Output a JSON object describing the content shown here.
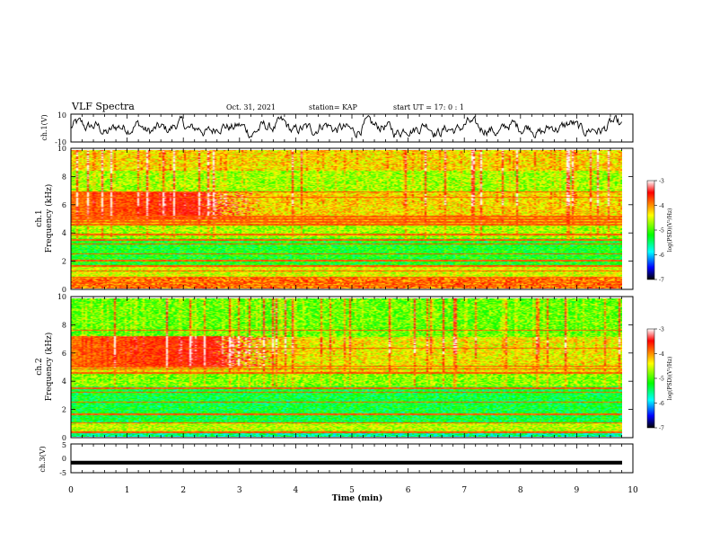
{
  "header": {
    "title": "VLF Spectra",
    "date": "Oct. 31, 2021",
    "station": "station= KAP",
    "start": "start  UT =   17: 0  : 1"
  },
  "colorbar": {
    "label": "log(PSD)(V²/Hz)",
    "ticks": [
      "-3",
      "-4",
      "-5",
      "-6",
      "-7"
    ],
    "stops": [
      "#ffffff",
      "#ff0000",
      "#ffff00",
      "#00ff00",
      "#00ffff",
      "#0000ff",
      "#000000"
    ]
  },
  "chart_data": [
    {
      "type": "line",
      "name": "ch1-waveform",
      "ylabel": "ch.1(V)",
      "ylim": [
        -10,
        10
      ],
      "yticks": [
        "10",
        "-10"
      ],
      "xlim": [
        0,
        10
      ],
      "x_unit": "min",
      "trace": {
        "mean": 0,
        "amplitude": 5,
        "color": "#000000"
      }
    },
    {
      "type": "heatmap",
      "name": "ch1-spectrogram",
      "ylabel": "ch.1\nFrequency (kHz)",
      "ylabel_lines": [
        "ch.1",
        "Frequency (kHz)"
      ],
      "ylim": [
        0,
        10
      ],
      "yticks": [
        "0",
        "2",
        "4",
        "6",
        "8",
        "10"
      ],
      "xlim": [
        0,
        9.8
      ],
      "color_scale": {
        "min": -7,
        "max": -3
      },
      "bands": [
        {
          "fmin": 0,
          "fmax": 0.8,
          "level": -3.9
        },
        {
          "fmin": 0.8,
          "fmax": 1.6,
          "level": -4.5
        },
        {
          "fmin": 1.6,
          "fmax": 3.6,
          "level": -5.2
        },
        {
          "fmin": 3.6,
          "fmax": 4.6,
          "level": -4.7
        },
        {
          "fmin": 4.6,
          "fmax": 5.2,
          "level": -4.2
        },
        {
          "fmin": 5.2,
          "fmax": 7.0,
          "level": -4.3
        },
        {
          "fmin": 7.0,
          "fmax": 8.5,
          "level": -4.7
        },
        {
          "fmin": 8.5,
          "fmax": 10,
          "level": -4.3
        }
      ],
      "burst": {
        "fmin": 5.0,
        "fmax": 7.0,
        "tmax": 2.2,
        "level": -3.9
      },
      "lines_khz": [
        0.2,
        0.4,
        0.8,
        1.25,
        1.6,
        2.0,
        2.5,
        3.2,
        3.5,
        3.9,
        4.6,
        4.8,
        5.0,
        5.2,
        6.6,
        7.0
      ]
    },
    {
      "type": "heatmap",
      "name": "ch2-spectrogram",
      "ylabel": "ch.2\nFrequency (kHz)",
      "ylabel_lines": [
        "ch.2",
        "Frequency (kHz)"
      ],
      "ylim": [
        0,
        10
      ],
      "yticks": [
        "0",
        "2",
        "4",
        "6",
        "8",
        "10"
      ],
      "xlim": [
        0,
        9.8
      ],
      "color_scale": {
        "min": -7,
        "max": -3
      },
      "bands": [
        {
          "fmin": 0,
          "fmax": 0.3,
          "level": -5.6
        },
        {
          "fmin": 0.3,
          "fmax": 1.0,
          "level": -4.6
        },
        {
          "fmin": 1.0,
          "fmax": 3.6,
          "level": -5.3
        },
        {
          "fmin": 3.6,
          "fmax": 4.6,
          "level": -4.8
        },
        {
          "fmin": 4.6,
          "fmax": 7.2,
          "level": -4.4
        },
        {
          "fmin": 7.2,
          "fmax": 10,
          "level": -4.9
        }
      ],
      "burst": {
        "fmin": 5.0,
        "fmax": 7.3,
        "tmax": 2.5,
        "level": -3.9
      },
      "lines_khz": [
        0.3,
        1.0,
        1.6,
        2.5,
        3.2,
        3.5,
        4.6,
        4.9,
        5.1,
        6.4,
        7.7
      ]
    },
    {
      "type": "line",
      "name": "ch3-waveform",
      "ylabel": "ch.3(V)",
      "ylim": [
        -5,
        5
      ],
      "yticks": [
        "5",
        "0",
        "-5"
      ],
      "xlim": [
        0,
        10
      ],
      "trace": {
        "mean": -1.5,
        "amplitude": 0.5,
        "color": "#000000"
      }
    }
  ],
  "xaxis": {
    "label": "Time (min)",
    "ticks": [
      "0",
      "1",
      "2",
      "3",
      "4",
      "5",
      "6",
      "7",
      "8",
      "9",
      "10"
    ]
  }
}
